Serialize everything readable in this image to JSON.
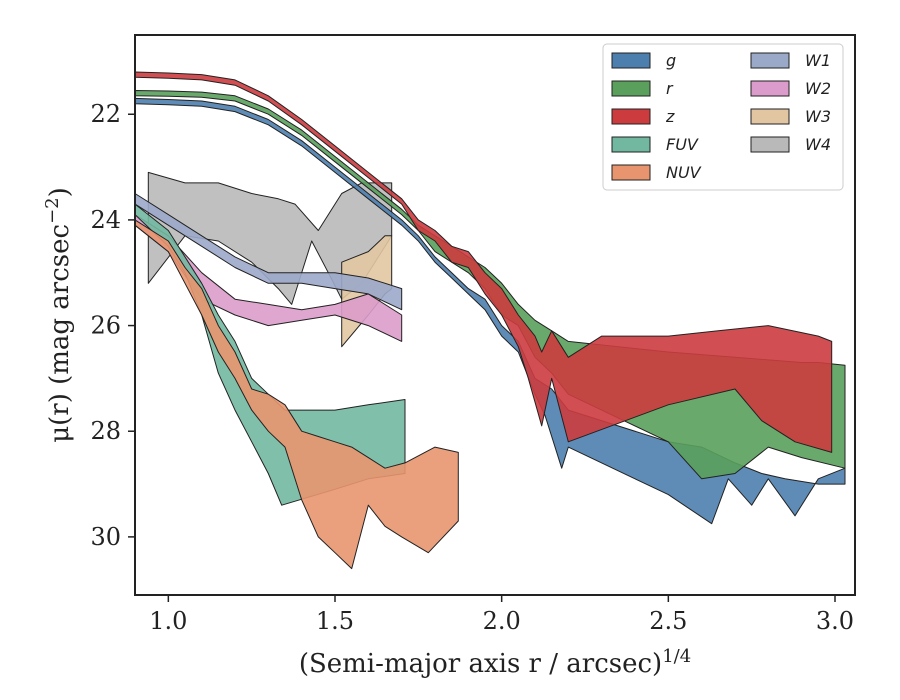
{
  "chart_data": {
    "type": "area",
    "xlabel": "(Semi-major axis r / arcsec)",
    "xlabel_exponent": "1/4",
    "ylabel": "μ(r) (mag arcsec",
    "ylabel_exponent": "−2",
    "ylabel_suffix": ")",
    "xlim": [
      0.9,
      3.06
    ],
    "ylim": [
      31.1,
      20.5
    ],
    "y_inverted": true,
    "xticks": [
      "1.0",
      "1.5",
      "2.0",
      "2.5",
      "3.0"
    ],
    "yticks": [
      "22",
      "24",
      "26",
      "28",
      "30"
    ],
    "grid": false,
    "legend": {
      "placement": "top-right",
      "columns": 2
    },
    "series": [
      {
        "name": "g",
        "color": "#4c7fae",
        "upper": [
          [
            0.9,
            21.7
          ],
          [
            1.0,
            21.72
          ],
          [
            1.1,
            21.75
          ],
          [
            1.2,
            21.85
          ],
          [
            1.3,
            22.1
          ],
          [
            1.4,
            22.5
          ],
          [
            1.5,
            23.0
          ],
          [
            1.6,
            23.5
          ],
          [
            1.7,
            24.0
          ],
          [
            1.75,
            24.3
          ],
          [
            1.8,
            24.7
          ],
          [
            1.85,
            25.0
          ],
          [
            1.9,
            25.3
          ],
          [
            1.95,
            25.5
          ],
          [
            2.0,
            26.0
          ],
          [
            2.05,
            26.3
          ],
          [
            2.1,
            27.0
          ],
          [
            2.15,
            27.2
          ],
          [
            2.2,
            27.6
          ],
          [
            2.5,
            28.2
          ],
          [
            2.6,
            28.3
          ],
          [
            2.7,
            28.6
          ],
          [
            2.78,
            28.8
          ],
          [
            2.85,
            28.9
          ],
          [
            2.95,
            29.0
          ],
          [
            3.03,
            29.0
          ]
        ],
        "lower": [
          [
            0.9,
            21.8
          ],
          [
            1.0,
            21.82
          ],
          [
            1.1,
            21.85
          ],
          [
            1.2,
            21.95
          ],
          [
            1.3,
            22.2
          ],
          [
            1.4,
            22.6
          ],
          [
            1.5,
            23.1
          ],
          [
            1.6,
            23.6
          ],
          [
            1.7,
            24.1
          ],
          [
            1.75,
            24.4
          ],
          [
            1.8,
            24.8
          ],
          [
            1.85,
            25.1
          ],
          [
            1.9,
            25.4
          ],
          [
            1.95,
            25.7
          ],
          [
            2.0,
            26.2
          ],
          [
            2.05,
            26.5
          ],
          [
            2.1,
            27.3
          ],
          [
            2.13,
            27.7
          ],
          [
            2.15,
            28.1
          ],
          [
            2.18,
            28.7
          ],
          [
            2.2,
            28.3
          ],
          [
            2.4,
            28.9
          ],
          [
            2.5,
            29.2
          ],
          [
            2.63,
            29.75
          ],
          [
            2.68,
            28.9
          ],
          [
            2.75,
            29.4
          ],
          [
            2.8,
            28.9
          ],
          [
            2.88,
            29.6
          ],
          [
            2.95,
            28.9
          ],
          [
            3.03,
            28.7
          ]
        ]
      },
      {
        "name": "r",
        "color": "#5aa05c",
        "upper": [
          [
            0.9,
            21.55
          ],
          [
            1.0,
            21.56
          ],
          [
            1.1,
            21.58
          ],
          [
            1.2,
            21.65
          ],
          [
            1.3,
            21.9
          ],
          [
            1.4,
            22.3
          ],
          [
            1.5,
            22.8
          ],
          [
            1.6,
            23.3
          ],
          [
            1.7,
            23.8
          ],
          [
            1.75,
            24.1
          ],
          [
            1.8,
            24.3
          ],
          [
            1.85,
            24.5
          ],
          [
            1.9,
            24.7
          ],
          [
            1.95,
            24.9
          ],
          [
            2.0,
            25.2
          ],
          [
            2.05,
            25.6
          ],
          [
            2.1,
            25.9
          ],
          [
            2.15,
            26.1
          ],
          [
            2.2,
            26.3
          ],
          [
            2.5,
            26.5
          ],
          [
            2.7,
            26.6
          ],
          [
            2.9,
            26.7
          ],
          [
            2.95,
            26.7
          ],
          [
            3.03,
            26.75
          ]
        ],
        "lower": [
          [
            0.9,
            21.65
          ],
          [
            1.0,
            21.66
          ],
          [
            1.1,
            21.68
          ],
          [
            1.2,
            21.75
          ],
          [
            1.3,
            22.0
          ],
          [
            1.4,
            22.4
          ],
          [
            1.5,
            22.9
          ],
          [
            1.6,
            23.4
          ],
          [
            1.7,
            23.9
          ],
          [
            1.75,
            24.2
          ],
          [
            1.8,
            24.6
          ],
          [
            1.85,
            24.8
          ],
          [
            1.9,
            25.0
          ],
          [
            1.95,
            25.3
          ],
          [
            2.0,
            25.8
          ],
          [
            2.05,
            26.0
          ],
          [
            2.1,
            26.6
          ],
          [
            2.15,
            26.9
          ],
          [
            2.2,
            27.3
          ],
          [
            2.5,
            28.2
          ],
          [
            2.6,
            28.9
          ],
          [
            2.7,
            28.8
          ],
          [
            2.8,
            28.3
          ],
          [
            2.9,
            28.5
          ],
          [
            3.03,
            28.7
          ]
        ]
      },
      {
        "name": "z",
        "color": "#cc3c3f",
        "upper": [
          [
            0.9,
            21.2
          ],
          [
            1.0,
            21.22
          ],
          [
            1.1,
            21.25
          ],
          [
            1.2,
            21.35
          ],
          [
            1.3,
            21.65
          ],
          [
            1.4,
            22.1
          ],
          [
            1.5,
            22.6
          ],
          [
            1.6,
            23.1
          ],
          [
            1.7,
            23.6
          ],
          [
            1.75,
            24.0
          ],
          [
            1.8,
            24.2
          ],
          [
            1.85,
            24.5
          ],
          [
            1.9,
            24.6
          ],
          [
            1.95,
            25.0
          ],
          [
            2.0,
            25.3
          ],
          [
            2.05,
            25.8
          ],
          [
            2.1,
            26.2
          ],
          [
            2.12,
            26.5
          ],
          [
            2.15,
            26.1
          ],
          [
            2.2,
            26.6
          ],
          [
            2.3,
            26.2
          ],
          [
            2.5,
            26.2
          ],
          [
            2.65,
            26.1
          ],
          [
            2.8,
            26.0
          ],
          [
            2.95,
            26.2
          ],
          [
            2.99,
            26.3
          ]
        ],
        "lower": [
          [
            0.9,
            21.3
          ],
          [
            1.0,
            21.32
          ],
          [
            1.1,
            21.35
          ],
          [
            1.2,
            21.45
          ],
          [
            1.3,
            21.75
          ],
          [
            1.4,
            22.2
          ],
          [
            1.5,
            22.7
          ],
          [
            1.6,
            23.2
          ],
          [
            1.7,
            23.7
          ],
          [
            1.75,
            24.2
          ],
          [
            1.8,
            24.4
          ],
          [
            1.85,
            24.8
          ],
          [
            1.9,
            24.9
          ],
          [
            1.95,
            25.4
          ],
          [
            2.0,
            25.8
          ],
          [
            2.05,
            26.4
          ],
          [
            2.08,
            27.0
          ],
          [
            2.12,
            27.9
          ],
          [
            2.15,
            27.0
          ],
          [
            2.2,
            28.2
          ],
          [
            2.5,
            27.5
          ],
          [
            2.7,
            27.2
          ],
          [
            2.78,
            27.8
          ],
          [
            2.88,
            28.2
          ],
          [
            2.99,
            28.4
          ]
        ]
      },
      {
        "name": "FUV",
        "color": "#72b8a0",
        "upper": [
          [
            0.9,
            23.7
          ],
          [
            1.0,
            24.2
          ],
          [
            1.1,
            25.2
          ],
          [
            1.15,
            25.8
          ],
          [
            1.2,
            26.3
          ],
          [
            1.25,
            27.0
          ],
          [
            1.3,
            27.3
          ],
          [
            1.35,
            27.6
          ],
          [
            1.4,
            27.6
          ],
          [
            1.45,
            27.6
          ],
          [
            1.5,
            27.6
          ],
          [
            1.6,
            27.5
          ],
          [
            1.71,
            27.4
          ]
        ],
        "lower": [
          [
            0.9,
            23.9
          ],
          [
            1.0,
            24.5
          ],
          [
            1.05,
            25.0
          ],
          [
            1.1,
            25.8
          ],
          [
            1.15,
            26.9
          ],
          [
            1.2,
            27.6
          ],
          [
            1.25,
            28.2
          ],
          [
            1.3,
            28.8
          ],
          [
            1.34,
            29.4
          ],
          [
            1.5,
            29.1
          ],
          [
            1.6,
            28.9
          ],
          [
            1.71,
            28.8
          ]
        ]
      },
      {
        "name": "NUV",
        "color": "#e8956f",
        "upper": [
          [
            0.9,
            24.0
          ],
          [
            1.0,
            24.4
          ],
          [
            1.05,
            24.9
          ],
          [
            1.1,
            25.3
          ],
          [
            1.15,
            26.0
          ],
          [
            1.2,
            26.5
          ],
          [
            1.25,
            27.2
          ],
          [
            1.3,
            27.3
          ],
          [
            1.35,
            27.5
          ],
          [
            1.4,
            28.0
          ],
          [
            1.45,
            28.1
          ],
          [
            1.5,
            28.2
          ],
          [
            1.55,
            28.3
          ],
          [
            1.6,
            28.5
          ],
          [
            1.65,
            28.7
          ],
          [
            1.71,
            28.6
          ],
          [
            1.8,
            28.3
          ],
          [
            1.87,
            28.4
          ]
        ],
        "lower": [
          [
            0.9,
            24.1
          ],
          [
            1.0,
            24.6
          ],
          [
            1.05,
            25.2
          ],
          [
            1.1,
            25.8
          ],
          [
            1.15,
            26.5
          ],
          [
            1.2,
            27.0
          ],
          [
            1.25,
            27.6
          ],
          [
            1.3,
            28.0
          ],
          [
            1.35,
            28.3
          ],
          [
            1.4,
            29.3
          ],
          [
            1.45,
            30.0
          ],
          [
            1.5,
            30.3
          ],
          [
            1.55,
            30.6
          ],
          [
            1.6,
            29.4
          ],
          [
            1.65,
            29.8
          ],
          [
            1.7,
            30.0
          ],
          [
            1.78,
            30.3
          ],
          [
            1.87,
            29.7
          ]
        ]
      },
      {
        "name": "W1",
        "color": "#9ba9c9",
        "upper": [
          [
            0.9,
            23.5
          ],
          [
            1.0,
            23.9
          ],
          [
            1.1,
            24.3
          ],
          [
            1.2,
            24.7
          ],
          [
            1.3,
            25.0
          ],
          [
            1.4,
            25.0
          ],
          [
            1.5,
            25.0
          ],
          [
            1.6,
            25.1
          ],
          [
            1.7,
            25.3
          ]
        ],
        "lower": [
          [
            0.9,
            23.7
          ],
          [
            1.0,
            24.1
          ],
          [
            1.1,
            24.5
          ],
          [
            1.2,
            24.9
          ],
          [
            1.3,
            25.2
          ],
          [
            1.4,
            25.2
          ],
          [
            1.5,
            25.3
          ],
          [
            1.6,
            25.4
          ],
          [
            1.7,
            25.7
          ]
        ]
      },
      {
        "name": "W2",
        "color": "#dc9ccb",
        "upper": [
          [
            0.9,
            23.9
          ],
          [
            1.0,
            24.3
          ],
          [
            1.1,
            25.0
          ],
          [
            1.2,
            25.5
          ],
          [
            1.3,
            25.6
          ],
          [
            1.4,
            25.7
          ],
          [
            1.5,
            25.6
          ],
          [
            1.6,
            25.4
          ],
          [
            1.7,
            25.8
          ]
        ],
        "lower": [
          [
            0.9,
            24.1
          ],
          [
            1.0,
            24.6
          ],
          [
            1.1,
            25.5
          ],
          [
            1.2,
            25.8
          ],
          [
            1.3,
            26.0
          ],
          [
            1.4,
            25.9
          ],
          [
            1.5,
            25.8
          ],
          [
            1.6,
            26.0
          ],
          [
            1.7,
            26.3
          ]
        ]
      },
      {
        "name": "W3",
        "color": "#e2c6a2",
        "upper": [
          [
            1.52,
            24.8
          ],
          [
            1.6,
            24.6
          ],
          [
            1.65,
            24.3
          ],
          [
            1.67,
            24.3
          ]
        ],
        "lower": [
          [
            1.52,
            26.4
          ],
          [
            1.6,
            25.8
          ],
          [
            1.65,
            25.4
          ],
          [
            1.67,
            25.3
          ]
        ]
      },
      {
        "name": "W4",
        "color": "#b9b9b9",
        "upper": [
          [
            0.94,
            23.1
          ],
          [
            1.05,
            23.3
          ],
          [
            1.15,
            23.3
          ],
          [
            1.25,
            23.5
          ],
          [
            1.33,
            23.6
          ],
          [
            1.38,
            23.7
          ],
          [
            1.45,
            24.2
          ],
          [
            1.52,
            23.5
          ],
          [
            1.58,
            23.3
          ],
          [
            1.67,
            23.3
          ]
        ],
        "lower": [
          [
            0.94,
            25.2
          ],
          [
            1.05,
            24.3
          ],
          [
            1.15,
            24.4
          ],
          [
            1.25,
            24.8
          ],
          [
            1.33,
            25.3
          ],
          [
            1.37,
            25.6
          ],
          [
            1.43,
            24.4
          ],
          [
            1.48,
            25.0
          ],
          [
            1.52,
            25.5
          ],
          [
            1.58,
            25.2
          ],
          [
            1.67,
            24.3
          ]
        ]
      }
    ]
  }
}
